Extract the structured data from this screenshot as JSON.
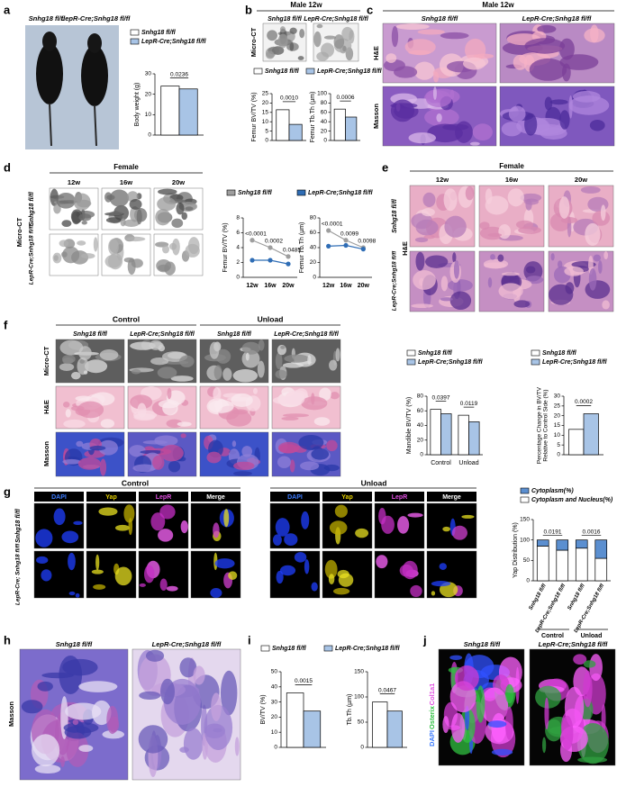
{
  "panels": {
    "a": {
      "letter": "a",
      "genotypes": [
        "Snhg18 fl/fl",
        "LepR-Cre;Snhg18 fl/fl"
      ]
    },
    "b": {
      "letter": "b",
      "title": "Male 12w",
      "row": "Micro-CT",
      "columns": [
        "Snhg18 fl/fl",
        "LepR-Cre;Snhg18 fl/fl"
      ]
    },
    "c": {
      "letter": "c",
      "title": "Male 12w",
      "columns": [
        "Snhg18 fl/fl",
        "LepR-Cre;Snhg18 fl/fl"
      ],
      "rows": [
        "H&E",
        "Masson"
      ]
    },
    "d": {
      "letter": "d",
      "title": "Female",
      "method": "Micro-CT",
      "columns": [
        "12w",
        "16w",
        "20w"
      ],
      "rows": [
        "Snhg18 fl/fl",
        "LepR-Cre;Snhg18 fl/fl"
      ]
    },
    "e": {
      "letter": "e",
      "title": "Female",
      "method": "H&E",
      "columns": [
        "12w",
        "16w",
        "20w"
      ],
      "rows": [
        "Snhg18 fl/fl",
        "LepR-Cre;Snhg18 fl/fl"
      ]
    },
    "f": {
      "letter": "f",
      "groups": [
        "Control",
        "Unload"
      ],
      "columns": [
        "Snhg18 fl/fl",
        "LepR-Cre;Snhg18 fl/fl",
        "Snhg18 fl/fl",
        "LepR-Cre;Snhg18 fl/fl"
      ],
      "rows": [
        "Micro-CT",
        "H&E",
        "Masson"
      ]
    },
    "g": {
      "letter": "g",
      "groups": [
        "Control",
        "Unload"
      ],
      "channels": [
        "DAPI",
        "Yap",
        "LepR",
        "Merge"
      ],
      "rows": [
        "Snhg18 fl/fl",
        "LepR-Cre; Snhg18 fl/fl"
      ]
    },
    "h": {
      "letter": "h",
      "method": "Masson",
      "columns": [
        "Snhg18 fl/fl",
        "LepR-Cre;Snhg18 fl/fl"
      ]
    },
    "i": {
      "letter": "i"
    },
    "j": {
      "letter": "j",
      "columns": [
        "Snhg18 fl/fl",
        "LepR-Cre;Snhg18 fl/fl"
      ],
      "stains": [
        "DAPI",
        "Osterix",
        "Col1a1"
      ]
    }
  },
  "charts": [
    {
      "type": "bar",
      "ylabel": "Body weight (g)",
      "ylim": [
        0,
        30
      ],
      "yticks": [
        0,
        10,
        20,
        30
      ],
      "series": [
        {
          "name": "Snhg18 fl/fl",
          "color": "#ffffff",
          "values": [
            24
          ]
        },
        {
          "name": "LepR-Cre;Snhg18 fl/fl",
          "color": "#a8c4e6",
          "values": [
            22.6
          ]
        }
      ],
      "pvalues": [
        "0.0236"
      ]
    },
    {
      "type": "bar",
      "ylabel": "Femur BV/TV (%)",
      "ylim": [
        0,
        25
      ],
      "yticks": [
        0,
        5,
        10,
        15,
        20,
        25
      ],
      "series": [
        {
          "name": "Snhg18 fl/fl",
          "color": "#ffffff",
          "values": [
            16.4
          ]
        },
        {
          "name": "LepR-Cre;Snhg18 fl/fl",
          "color": "#a8c4e6",
          "values": [
            8.6
          ]
        }
      ],
      "pvalues": [
        "0.0010"
      ]
    },
    {
      "type": "bar",
      "ylabel": "Femur Tb.Th (µm)",
      "ylim": [
        0,
        100
      ],
      "yticks": [
        0,
        20,
        40,
        60,
        80,
        100
      ],
      "series": [
        {
          "color": "#ffffff",
          "values": [
            67
          ]
        },
        {
          "color": "#a8c4e6",
          "values": [
            50
          ]
        }
      ],
      "pvalues": [
        "0.0006"
      ]
    },
    {
      "type": "line",
      "ylabel": "Femur BV/TV (%)",
      "categories": [
        "12w",
        "16w",
        "20w"
      ],
      "ylim": [
        0,
        8
      ],
      "yticks": [
        0,
        2,
        4,
        6,
        8
      ],
      "series": [
        {
          "name": "Snhg18 fl/fl",
          "color": "#9e9e9e",
          "values": [
            5.0,
            4.0,
            2.8
          ]
        },
        {
          "name": "LepR-Cre;Snhg18 fl/fl",
          "color": "#2f6db5",
          "values": [
            2.3,
            2.3,
            1.8
          ]
        }
      ],
      "pvalues": [
        "<0.0001",
        "0.0002",
        "0.0485"
      ]
    },
    {
      "type": "line",
      "ylabel": "Femur Tb.Th (µm)",
      "categories": [
        "12w",
        "16w",
        "20w"
      ],
      "ylim": [
        0,
        80
      ],
      "yticks": [
        0,
        20,
        40,
        60,
        80
      ],
      "series": [
        {
          "color": "#9e9e9e",
          "values": [
            63,
            50,
            40
          ]
        },
        {
          "color": "#2f6db5",
          "values": [
            42,
            43,
            38
          ]
        }
      ],
      "pvalues": [
        "<0.0001",
        "0.0099",
        "0.0098"
      ]
    },
    {
      "type": "bar",
      "ylabel": "Mandible BV/TV (%)",
      "categories": [
        "Control",
        "Unload"
      ],
      "ylim": [
        0,
        80
      ],
      "yticks": [
        0,
        20,
        40,
        60,
        80
      ],
      "series": [
        {
          "name": "Snhg18 fl/fl",
          "color": "#ffffff",
          "values": [
            62,
            54
          ]
        },
        {
          "name": "LepR-Cre;Snhg18 fl/fl",
          "color": "#a8c4e6",
          "values": [
            56,
            45
          ]
        }
      ],
      "pvalues": [
        "0.0397",
        "0.0119"
      ]
    },
    {
      "type": "bar",
      "ylabel": [
        "Percentage Change in BV/TV",
        "Relative to Control Side (%)"
      ],
      "ylim": [
        0,
        30
      ],
      "yticks": [
        0,
        5,
        10,
        15,
        20,
        25,
        30
      ],
      "series": [
        {
          "name": "Snhg18 fl/fl",
          "color": "#ffffff",
          "values": [
            13
          ]
        },
        {
          "name": "LepR-Cre;Snhg18 fl/fl",
          "color": "#a8c4e6",
          "values": [
            21
          ]
        }
      ],
      "pvalues": [
        "0.0002"
      ]
    },
    {
      "type": "stacked_bar",
      "ylabel": "Yap Distribution (%)",
      "categories": [
        "Snhg18 fl/fl",
        "LepR-Cre;Snhg18 fl/fl",
        "Snhg18 fl/fl",
        "LepR-Cre;Snhg18 fl/fl"
      ],
      "groups": [
        "Control",
        "Unload"
      ],
      "ylim": [
        0,
        150
      ],
      "yticks": [
        0,
        50,
        100,
        150
      ],
      "series": [
        {
          "name": "Cytoplasm(%)",
          "color": "#5b8fd0",
          "values": [
            15,
            25,
            20,
            45
          ]
        },
        {
          "name": "Cytoplasm and Nucleus(%)",
          "color": "#ffffff",
          "values": [
            85,
            75,
            80,
            55
          ]
        }
      ],
      "pvalues": [
        "0.0191",
        "0.0016"
      ]
    },
    {
      "type": "bar",
      "ylabel": "BV/TV (%)",
      "ylim": [
        0,
        50
      ],
      "yticks": [
        0,
        10,
        20,
        30,
        40,
        50
      ],
      "series": [
        {
          "name": "Snhg18 fl/fl",
          "color": "#ffffff",
          "values": [
            36
          ]
        },
        {
          "name": "LepR-Cre;Snhg18 fl/fl",
          "color": "#a8c4e6",
          "values": [
            24
          ]
        }
      ],
      "pvalues": [
        "0.0015"
      ]
    },
    {
      "type": "bar",
      "ylabel": "Tb.Th (µm)",
      "ylim": [
        0,
        150
      ],
      "yticks": [
        0,
        50,
        100,
        150
      ],
      "series": [
        {
          "color": "#ffffff",
          "values": [
            90
          ]
        },
        {
          "color": "#a8c4e6",
          "values": [
            72
          ]
        }
      ],
      "pvalues": [
        "0.0467"
      ]
    }
  ]
}
